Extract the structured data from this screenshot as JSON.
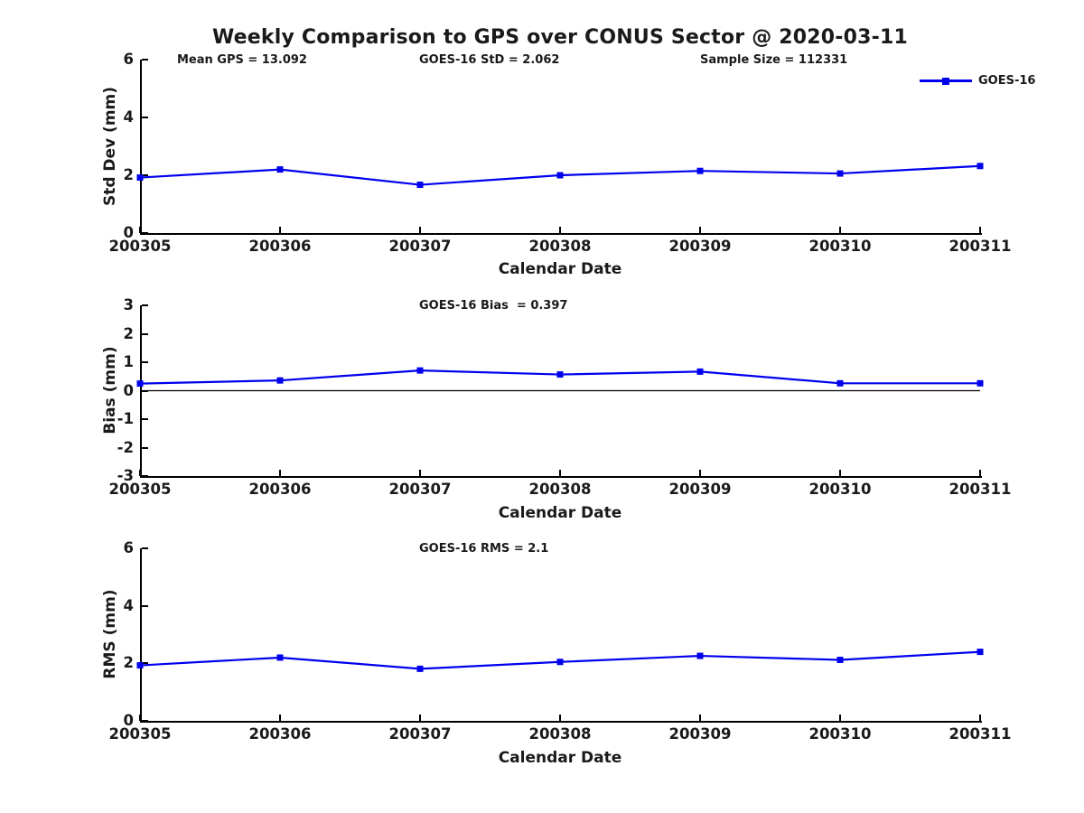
{
  "title": "Weekly Comparison to GPS over CONUS Sector @ 2020-03-11",
  "colors": {
    "series_line": "#0000ee",
    "text": "#1a1a1a",
    "axis": "#000000",
    "background": "#ffffff"
  },
  "legend": {
    "label": "GOES-16",
    "position": "northeast"
  },
  "chart_data": [
    {
      "type": "line",
      "title": "",
      "categories": [
        "200305",
        "200306",
        "200307",
        "200308",
        "200309",
        "200310",
        "200311"
      ],
      "series": [
        {
          "name": "GOES-16",
          "values": [
            1.92,
            2.2,
            1.67,
            2.0,
            2.15,
            2.06,
            2.32
          ]
        }
      ],
      "annotations": [
        "Mean GPS = 13.092",
        "GOES-16 StD = 2.062",
        "Sample Size = 112331"
      ],
      "xlabel": "Calendar Date",
      "ylabel": "Std Dev (mm)",
      "ylim": [
        0,
        6
      ],
      "yticks": [
        0,
        2,
        4,
        6
      ],
      "grid": false,
      "zero_line": false,
      "marker": "square"
    },
    {
      "type": "line",
      "title": "",
      "categories": [
        "200305",
        "200306",
        "200307",
        "200308",
        "200309",
        "200310",
        "200311"
      ],
      "series": [
        {
          "name": "GOES-16",
          "values": [
            0.25,
            0.36,
            0.71,
            0.57,
            0.67,
            0.26,
            0.26
          ]
        }
      ],
      "annotations": [
        "GOES-16 Bias  = 0.397"
      ],
      "xlabel": "Calendar Date",
      "ylabel": "Bias (mm)",
      "ylim": [
        -3,
        3
      ],
      "yticks": [
        -3,
        -2,
        -1,
        0,
        1,
        2,
        3
      ],
      "grid": false,
      "zero_line": true,
      "marker": "square"
    },
    {
      "type": "line",
      "title": "",
      "categories": [
        "200305",
        "200306",
        "200307",
        "200308",
        "200309",
        "200310",
        "200311"
      ],
      "series": [
        {
          "name": "GOES-16",
          "values": [
            1.93,
            2.2,
            1.81,
            2.05,
            2.26,
            2.12,
            2.4
          ]
        }
      ],
      "annotations": [
        "GOES-16 RMS = 2.1"
      ],
      "xlabel": "Calendar Date",
      "ylabel": "RMS (mm)",
      "ylim": [
        0,
        6
      ],
      "yticks": [
        0,
        2,
        4,
        6
      ],
      "grid": false,
      "zero_line": false,
      "marker": "square"
    }
  ]
}
